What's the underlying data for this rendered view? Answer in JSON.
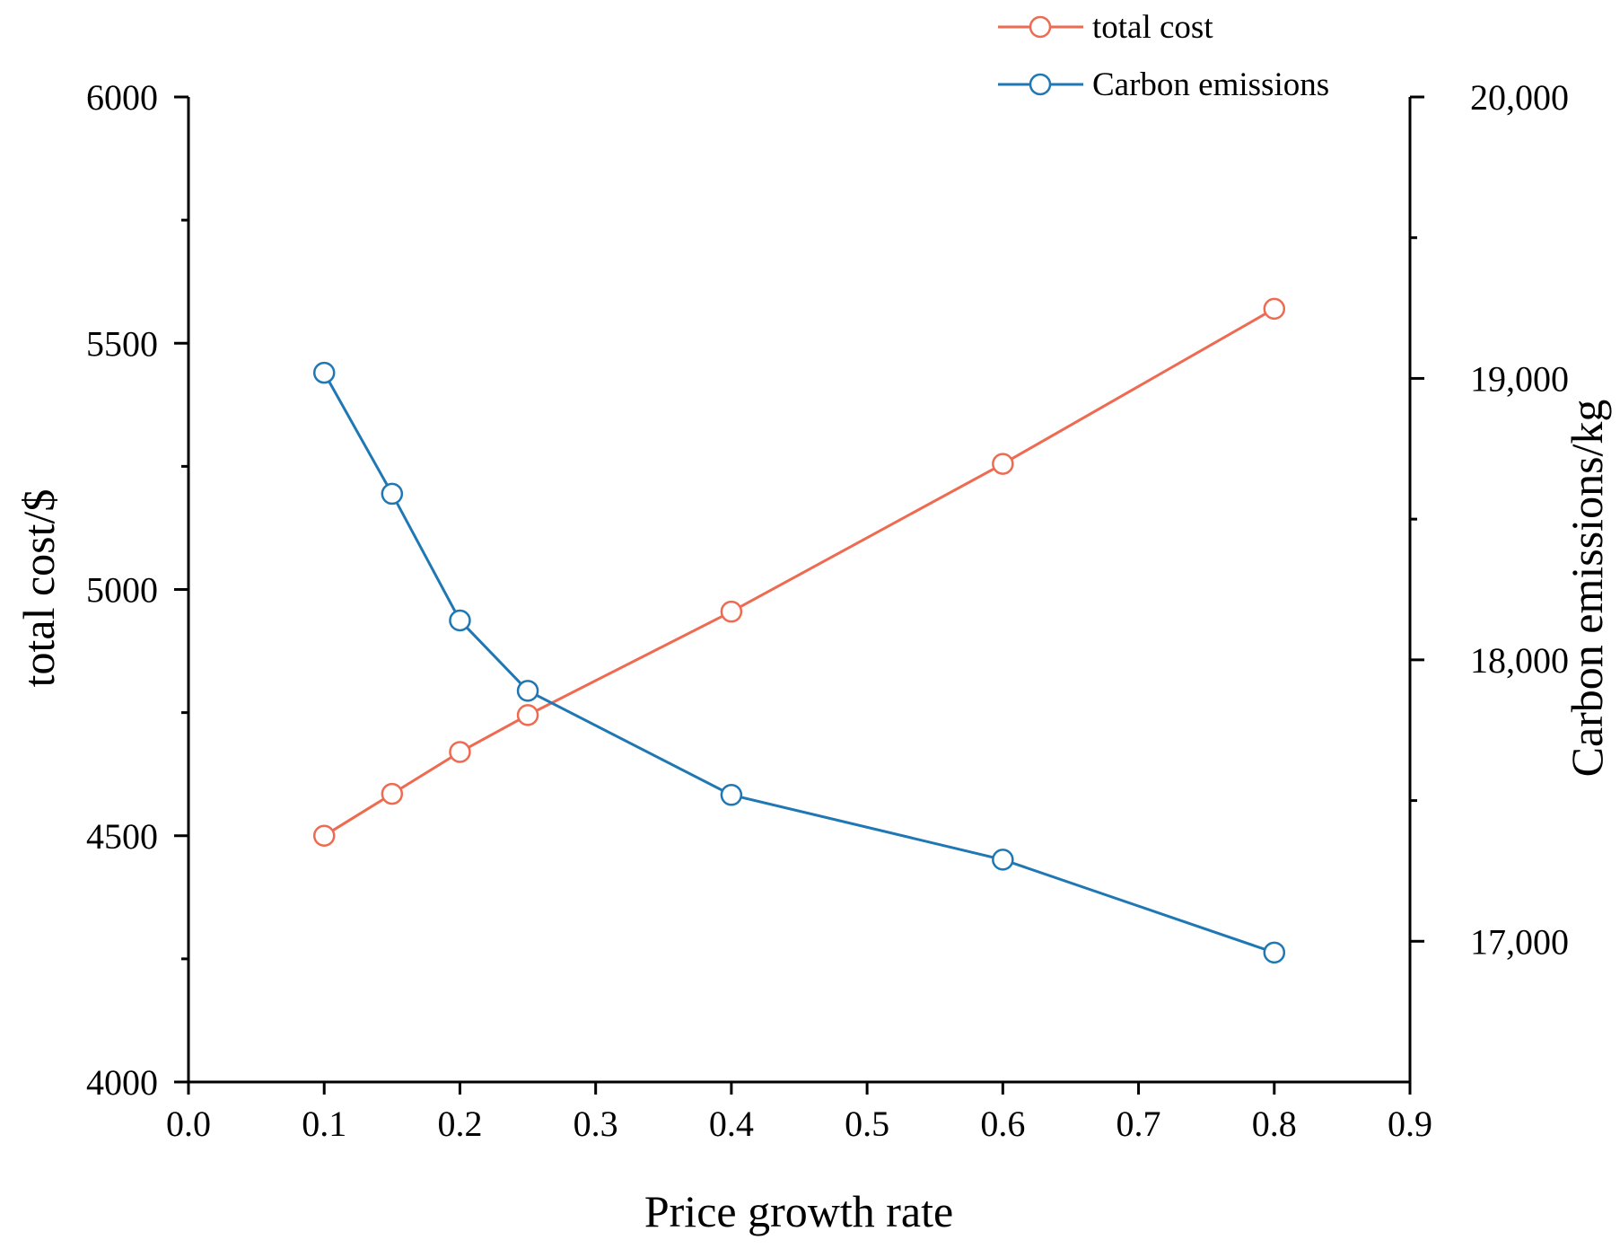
{
  "chart_data": {
    "type": "line",
    "title": "",
    "xlabel": "Price growth rate",
    "ylabel_left": "total cost/$",
    "ylabel_right": "Carbon emissions/kg",
    "xlim": [
      0.0,
      0.9
    ],
    "ylim_left": [
      4000,
      6000
    ],
    "ylim_right": [
      16500,
      20000
    ],
    "x_ticks": [
      "0.0",
      "0.1",
      "0.2",
      "0.3",
      "0.4",
      "0.5",
      "0.6",
      "0.7",
      "0.8",
      "0.9"
    ],
    "y_left_ticks": [
      "4000",
      "4500",
      "5000",
      "5500",
      "6000"
    ],
    "y_right_ticks": [
      "17,000",
      "18,000",
      "19,000",
      "20,000"
    ],
    "legend_position": "top-right",
    "grid": false,
    "series": [
      {
        "name": "total cost",
        "axis": "left",
        "color": "#EE6A50",
        "x": [
          0.1,
          0.15,
          0.2,
          0.25,
          0.4,
          0.6,
          0.8
        ],
        "values": [
          4500,
          4585,
          4670,
          4745,
          4955,
          5255,
          5570
        ]
      },
      {
        "name": "Carbon emissions",
        "axis": "right",
        "color": "#1F77B4",
        "x": [
          0.1,
          0.15,
          0.2,
          0.25,
          0.4,
          0.6,
          0.8
        ],
        "values": [
          19020,
          18590,
          18140,
          17890,
          17520,
          17290,
          16960
        ]
      }
    ]
  }
}
